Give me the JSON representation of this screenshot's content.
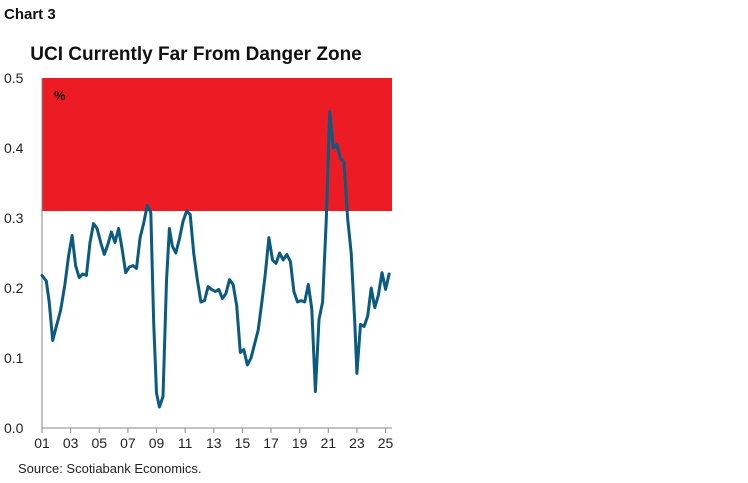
{
  "header": {
    "chart_label": "Chart 3"
  },
  "footer": {
    "source": "Source: Scotiabank Economics."
  },
  "colors": {
    "series": "#0b5a80",
    "danger_zone": "#ed1c24",
    "axis": "#888888",
    "text": "#222222"
  },
  "chart_data": {
    "type": "line",
    "title": "UCI Currently Far From Danger Zone",
    "unit_label": "%",
    "xlabel": "",
    "ylabel": "",
    "xlim": [
      2001.0,
      2025.45
    ],
    "ylim": [
      0,
      0.5
    ],
    "yticks": [
      0.0,
      0.1,
      0.2,
      0.3,
      0.4,
      0.5
    ],
    "ytick_labels": [
      "0.0",
      "0.1",
      "0.2",
      "0.3",
      "0.4",
      "0.5"
    ],
    "xticks": [
      2001,
      2003,
      2005,
      2007,
      2009,
      2011,
      2013,
      2015,
      2017,
      2019,
      2021,
      2023,
      2025
    ],
    "xtick_labels": [
      "01",
      "03",
      "05",
      "07",
      "09",
      "11",
      "13",
      "15",
      "17",
      "19",
      "21",
      "23",
      "25"
    ],
    "shaded_band": {
      "label": "danger zone",
      "y_from": 0.31,
      "y_to": 0.5
    },
    "series": [
      {
        "name": "UCI",
        "points": [
          [
            2001.0,
            0.218
          ],
          [
            2001.3,
            0.21
          ],
          [
            2001.5,
            0.18
          ],
          [
            2001.75,
            0.125
          ],
          [
            2002.0,
            0.145
          ],
          [
            2002.3,
            0.168
          ],
          [
            2002.6,
            0.205
          ],
          [
            2002.85,
            0.245
          ],
          [
            2003.1,
            0.275
          ],
          [
            2003.35,
            0.232
          ],
          [
            2003.6,
            0.215
          ],
          [
            2003.85,
            0.22
          ],
          [
            2004.1,
            0.218
          ],
          [
            2004.35,
            0.265
          ],
          [
            2004.6,
            0.292
          ],
          [
            2004.85,
            0.285
          ],
          [
            2005.1,
            0.265
          ],
          [
            2005.35,
            0.248
          ],
          [
            2005.6,
            0.262
          ],
          [
            2005.85,
            0.28
          ],
          [
            2006.1,
            0.265
          ],
          [
            2006.35,
            0.285
          ],
          [
            2006.6,
            0.255
          ],
          [
            2006.85,
            0.222
          ],
          [
            2007.1,
            0.23
          ],
          [
            2007.35,
            0.232
          ],
          [
            2007.6,
            0.228
          ],
          [
            2007.85,
            0.272
          ],
          [
            2008.1,
            0.292
          ],
          [
            2008.35,
            0.318
          ],
          [
            2008.6,
            0.308
          ],
          [
            2008.8,
            0.15
          ],
          [
            2009.0,
            0.05
          ],
          [
            2009.2,
            0.03
          ],
          [
            2009.45,
            0.045
          ],
          [
            2009.7,
            0.21
          ],
          [
            2009.9,
            0.285
          ],
          [
            2010.1,
            0.26
          ],
          [
            2010.35,
            0.25
          ],
          [
            2010.6,
            0.27
          ],
          [
            2010.85,
            0.295
          ],
          [
            2011.1,
            0.31
          ],
          [
            2011.35,
            0.305
          ],
          [
            2011.6,
            0.25
          ],
          [
            2011.85,
            0.212
          ],
          [
            2012.1,
            0.18
          ],
          [
            2012.35,
            0.182
          ],
          [
            2012.6,
            0.202
          ],
          [
            2012.85,
            0.198
          ],
          [
            2013.1,
            0.195
          ],
          [
            2013.35,
            0.198
          ],
          [
            2013.6,
            0.185
          ],
          [
            2013.85,
            0.192
          ],
          [
            2014.1,
            0.212
          ],
          [
            2014.35,
            0.205
          ],
          [
            2014.6,
            0.175
          ],
          [
            2014.85,
            0.108
          ],
          [
            2015.1,
            0.112
          ],
          [
            2015.35,
            0.09
          ],
          [
            2015.6,
            0.1
          ],
          [
            2015.85,
            0.12
          ],
          [
            2016.1,
            0.14
          ],
          [
            2016.35,
            0.178
          ],
          [
            2016.6,
            0.22
          ],
          [
            2016.85,
            0.272
          ],
          [
            2017.1,
            0.24
          ],
          [
            2017.35,
            0.235
          ],
          [
            2017.6,
            0.25
          ],
          [
            2017.85,
            0.24
          ],
          [
            2018.1,
            0.248
          ],
          [
            2018.35,
            0.238
          ],
          [
            2018.6,
            0.195
          ],
          [
            2018.85,
            0.18
          ],
          [
            2019.1,
            0.182
          ],
          [
            2019.35,
            0.18
          ],
          [
            2019.6,
            0.205
          ],
          [
            2019.85,
            0.17
          ],
          [
            2020.1,
            0.052
          ],
          [
            2020.35,
            0.155
          ],
          [
            2020.6,
            0.18
          ],
          [
            2020.85,
            0.295
          ],
          [
            2021.1,
            0.452
          ],
          [
            2021.35,
            0.4
          ],
          [
            2021.6,
            0.405
          ],
          [
            2021.85,
            0.385
          ],
          [
            2022.1,
            0.38
          ],
          [
            2022.35,
            0.3
          ],
          [
            2022.6,
            0.25
          ],
          [
            2022.85,
            0.15
          ],
          [
            2023.0,
            0.078
          ],
          [
            2023.25,
            0.148
          ],
          [
            2023.5,
            0.145
          ],
          [
            2023.75,
            0.16
          ],
          [
            2024.0,
            0.2
          ],
          [
            2024.25,
            0.172
          ],
          [
            2024.5,
            0.19
          ],
          [
            2024.75,
            0.222
          ],
          [
            2025.0,
            0.198
          ],
          [
            2025.25,
            0.22
          ]
        ]
      }
    ]
  }
}
